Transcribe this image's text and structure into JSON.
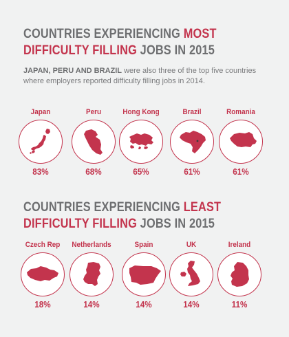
{
  "section_most": {
    "title_line1_pre": "COUNTRIES EXPERIENCING ",
    "title_line1_emph": "MOST",
    "title_line2_emph": "DIFFICULTY FILLING",
    "title_line2_post": " JOBS IN 2015",
    "note_strong": "JAPAN, PERU AND BRAZIL",
    "note_rest": " were also three of the top five countries where employers reported difficulty filling jobs in 2014."
  },
  "section_least": {
    "title_line1_pre": "COUNTRIES EXPERIENCING ",
    "title_line1_emph": "LEAST",
    "title_line2_emph": "DIFFICULTY FILLING",
    "title_line2_post": " JOBS IN 2015"
  },
  "colors": {
    "accent": "#c3344d",
    "heading_grey": "#6d6e70",
    "background": "#f1f2f2"
  },
  "chart_data": [
    {
      "type": "table",
      "title": "COUNTRIES EXPERIENCING MOST DIFFICULTY FILLING JOBS IN 2015",
      "categories": [
        "Japan",
        "Peru",
        "Hong Kong",
        "Brazil",
        "Romania"
      ],
      "values": [
        83,
        68,
        65,
        61,
        61
      ],
      "labels": [
        "83%",
        "68%",
        "65%",
        "61%",
        "61%"
      ],
      "icons": [
        "japan-map-icon",
        "peru-map-icon",
        "hong-kong-map-icon",
        "brazil-map-icon",
        "romania-map-icon"
      ]
    },
    {
      "type": "table",
      "title": "COUNTRIES EXPERIENCING LEAST DIFFICULTY FILLING JOBS IN 2015",
      "categories": [
        "Czech Rep",
        "Netherlands",
        "Spain",
        "UK",
        "Ireland"
      ],
      "values": [
        18,
        14,
        14,
        14,
        11
      ],
      "labels": [
        "18%",
        "14%",
        "14%",
        "14%",
        "11%"
      ],
      "icons": [
        "czech-rep-map-icon",
        "netherlands-map-icon",
        "spain-map-icon",
        "uk-map-icon",
        "ireland-map-icon"
      ]
    }
  ]
}
